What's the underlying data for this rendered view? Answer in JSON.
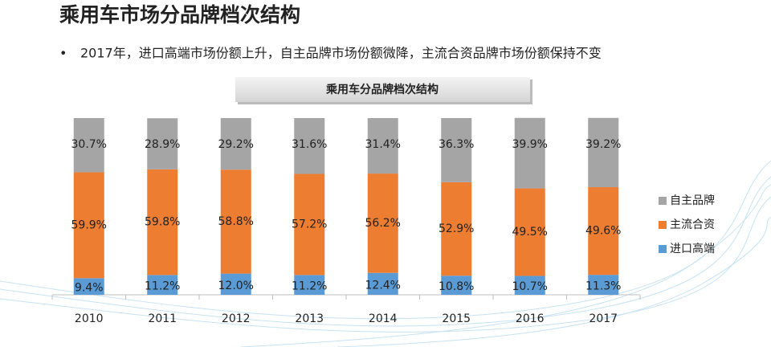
{
  "title": "乘用车市场分品牌档次结构",
  "bullet": "2017年，进口高端市场份额上升，自主品牌市场份额微降，主流合资品牌市场份额保持不变",
  "chart_data": {
    "type": "stacked_bar",
    "title": "乘用车分品牌档次结构",
    "categories": [
      "2010",
      "2011",
      "2012",
      "2013",
      "2014",
      "2015",
      "2016",
      "2017"
    ],
    "series": [
      {
        "name": "进口高端",
        "color": "#5b9bd5",
        "values": [
          9.4,
          11.2,
          12.0,
          11.2,
          12.4,
          10.8,
          10.7,
          11.3
        ],
        "value_labels": [
          "9.4%",
          "11.2%",
          "12.0%",
          "11.2%",
          "12.4%",
          "10.8%",
          "10.7%",
          "11.3%"
        ]
      },
      {
        "name": "主流合资",
        "color": "#ed7d31",
        "values": [
          59.9,
          59.8,
          58.8,
          57.2,
          56.2,
          52.9,
          49.5,
          49.6
        ],
        "value_labels": [
          "59.9%",
          "59.8%",
          "58.8%",
          "57.2%",
          "56.2%",
          "52.9%",
          "49.5%",
          "49.6%"
        ]
      },
      {
        "name": "自主品牌",
        "color": "#a5a5a5",
        "values": [
          30.7,
          28.9,
          29.2,
          31.6,
          31.4,
          36.3,
          39.9,
          39.2
        ],
        "value_labels": [
          "30.7%",
          "28.9%",
          "29.2%",
          "31.6%",
          "31.4%",
          "36.3%",
          "39.9%",
          "39.2%"
        ]
      }
    ],
    "ylim": [
      0,
      100
    ],
    "legend": "right"
  }
}
